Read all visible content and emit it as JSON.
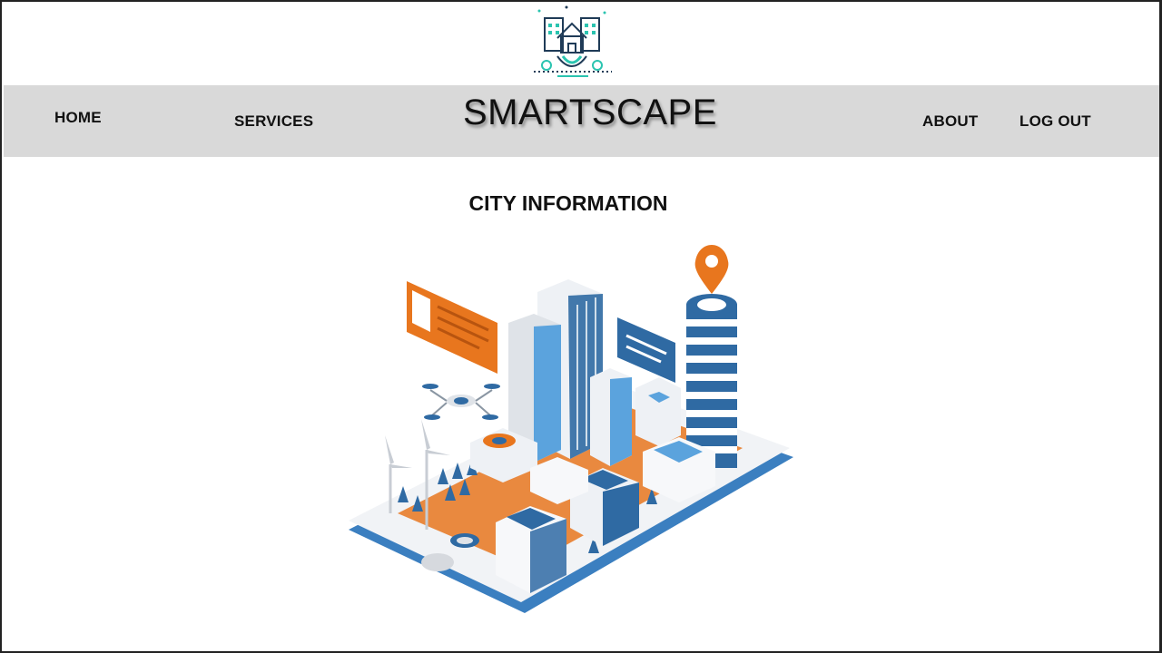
{
  "logo": {
    "icon": "smart-city-gear-logo",
    "colors": {
      "dark": "#1f3b57",
      "accent": "#2bc4b0"
    }
  },
  "navbar": {
    "background": "#d9d9d9",
    "brand": "SMARTSCAPE",
    "home": "HOME",
    "services": "SERVICES",
    "about": "ABOUT",
    "logout": "LOG OUT"
  },
  "main": {
    "heading": "CITY INFORMATION",
    "illustration": {
      "icon": "isometric-smart-city-on-phone",
      "colors": {
        "blue": "#2f6aa3",
        "light_blue": "#5ba3dd",
        "orange": "#e8761e",
        "gray": "#dfe3e8"
      }
    }
  }
}
